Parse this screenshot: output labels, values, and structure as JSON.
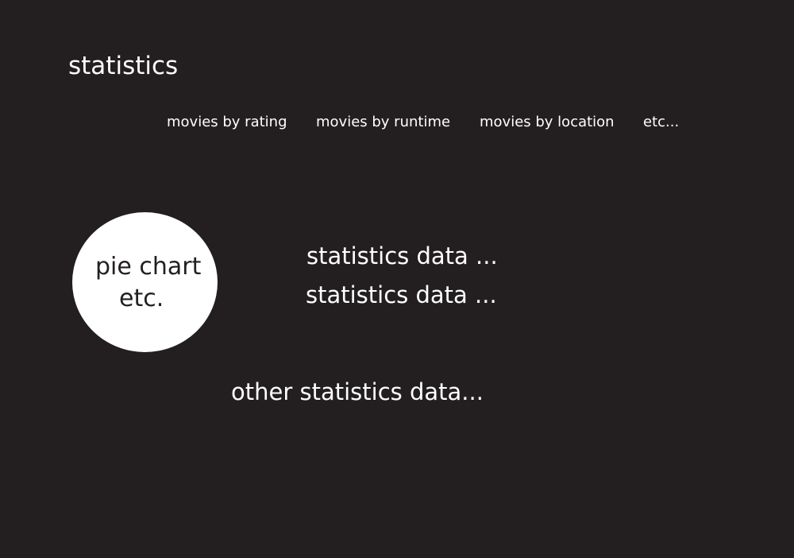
{
  "header": {
    "title": "statistics"
  },
  "nav": {
    "items": [
      {
        "label": "movies by rating"
      },
      {
        "label": "movies by runtime"
      },
      {
        "label": "movies by location"
      },
      {
        "label": "etc..."
      }
    ]
  },
  "chart": {
    "placeholder_line1": "pie chart",
    "placeholder_line2": "etc."
  },
  "stats": {
    "lines": [
      "statistics data ...",
      "statistics data ..."
    ],
    "other": "other statistics data..."
  },
  "colors": {
    "background": "#231f20",
    "foreground": "#ffffff"
  }
}
